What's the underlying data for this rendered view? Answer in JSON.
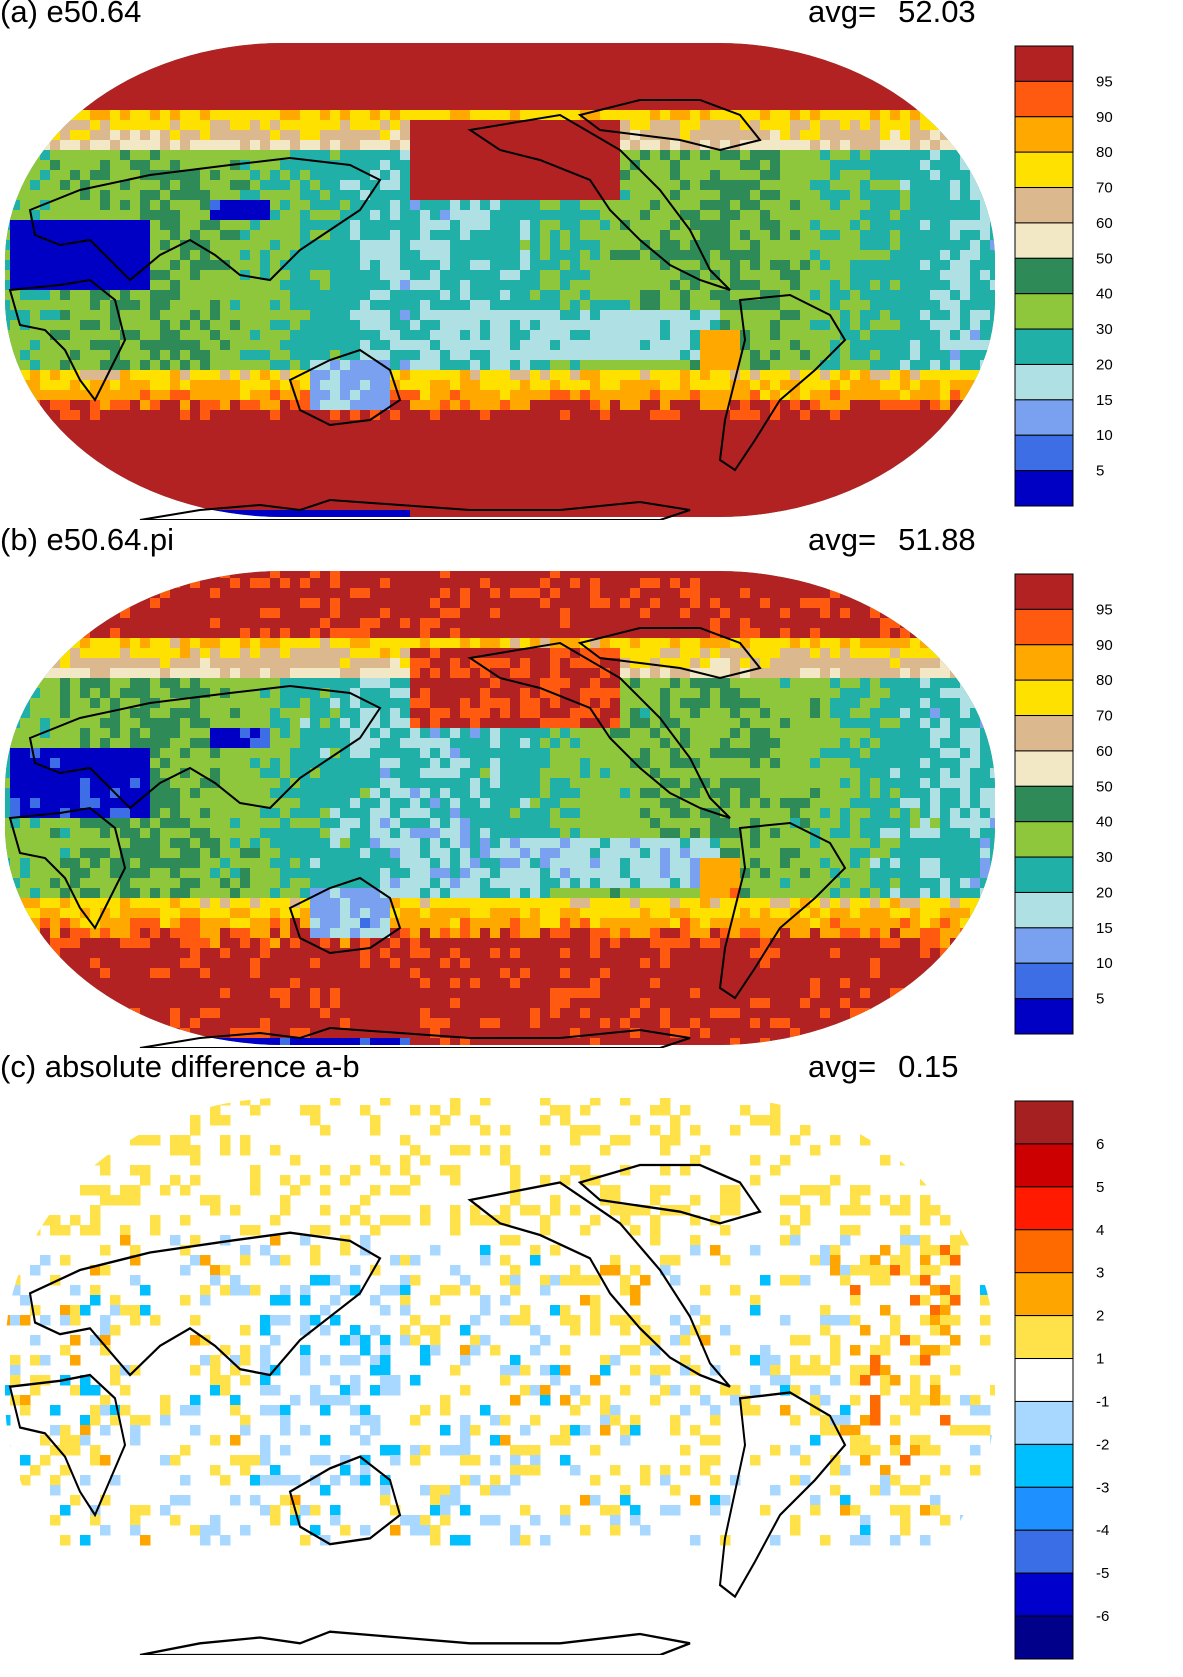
{
  "chart_data": [
    {
      "type": "heatmap",
      "panel": "a",
      "title": "(a) e50.64",
      "avg_label": "avg=",
      "avg_value": "52.03",
      "projection": "Robinson, Pacific-centered world map",
      "colorbar": {
        "levels": [
          "5",
          "10",
          "15",
          "20",
          "30",
          "40",
          "50",
          "60",
          "70",
          "80",
          "90",
          "95"
        ],
        "colors": [
          "#0000c4",
          "#3e6ee6",
          "#7aa0f0",
          "#aee0e4",
          "#20b0a8",
          "#8ec63c",
          "#2e8b57",
          "#f2e8c6",
          "#dcb88e",
          "#ffe100",
          "#ffa800",
          "#ff5a10",
          "#b22222"
        ]
      },
      "fields": [
        {
          "name": "arctic",
          "value": "95+"
        },
        {
          "name": "southern-ocean-belt",
          "value": "95+"
        },
        {
          "name": "north-pacific",
          "value": "95+"
        },
        {
          "name": "sahara-arabia",
          "value": "<5"
        },
        {
          "name": "tropical-pacific",
          "value": "20-30"
        },
        {
          "name": "antarctica-interior",
          "value": "<5"
        }
      ]
    },
    {
      "type": "heatmap",
      "panel": "b",
      "title": "(b) e50.64.pi",
      "avg_label": "avg=",
      "avg_value": "51.88",
      "projection": "Robinson, Pacific-centered world map",
      "colorbar": {
        "levels": [
          "5",
          "10",
          "15",
          "20",
          "30",
          "40",
          "50",
          "60",
          "70",
          "80",
          "90",
          "95"
        ],
        "colors": [
          "#0000c4",
          "#3e6ee6",
          "#7aa0f0",
          "#aee0e4",
          "#20b0a8",
          "#8ec63c",
          "#2e8b57",
          "#f2e8c6",
          "#dcb88e",
          "#ffe100",
          "#ffa800",
          "#ff5a10",
          "#b22222"
        ]
      },
      "fields": [
        {
          "name": "arctic",
          "value": "95+"
        },
        {
          "name": "southern-ocean-belt",
          "value": "95+"
        },
        {
          "name": "north-pacific",
          "value": "95+"
        },
        {
          "name": "sahara-arabia",
          "value": "<5"
        },
        {
          "name": "tropical-pacific",
          "value": "20-30"
        },
        {
          "name": "antarctica-interior",
          "value": "<5"
        }
      ]
    },
    {
      "type": "heatmap",
      "panel": "c",
      "title": "(c) absolute difference a-b",
      "avg_label": "avg=",
      "avg_value": "0.15",
      "projection": "Robinson, Pacific-centered world map",
      "colorbar": {
        "levels": [
          "-6",
          "-5",
          "-4",
          "-3",
          "-2",
          "-1",
          "1",
          "2",
          "3",
          "4",
          "5",
          "6"
        ],
        "colors": [
          "#00008b",
          "#0000cd",
          "#3a6ee6",
          "#1e90ff",
          "#00bfff",
          "#a8d8ff",
          "#ffffff",
          "#ffe14a",
          "#ffa500",
          "#ff6a00",
          "#ff1a00",
          "#cc0000",
          "#a52020"
        ]
      },
      "fields": [
        {
          "name": "background",
          "value": "-1 to 1"
        },
        {
          "name": "arctic-north-atlantic",
          "value": "1 to 3"
        },
        {
          "name": "maritime-continent",
          "value": "-3 to -1"
        },
        {
          "name": "tropical-speckle",
          "value": "-3 to 3"
        }
      ]
    }
  ]
}
